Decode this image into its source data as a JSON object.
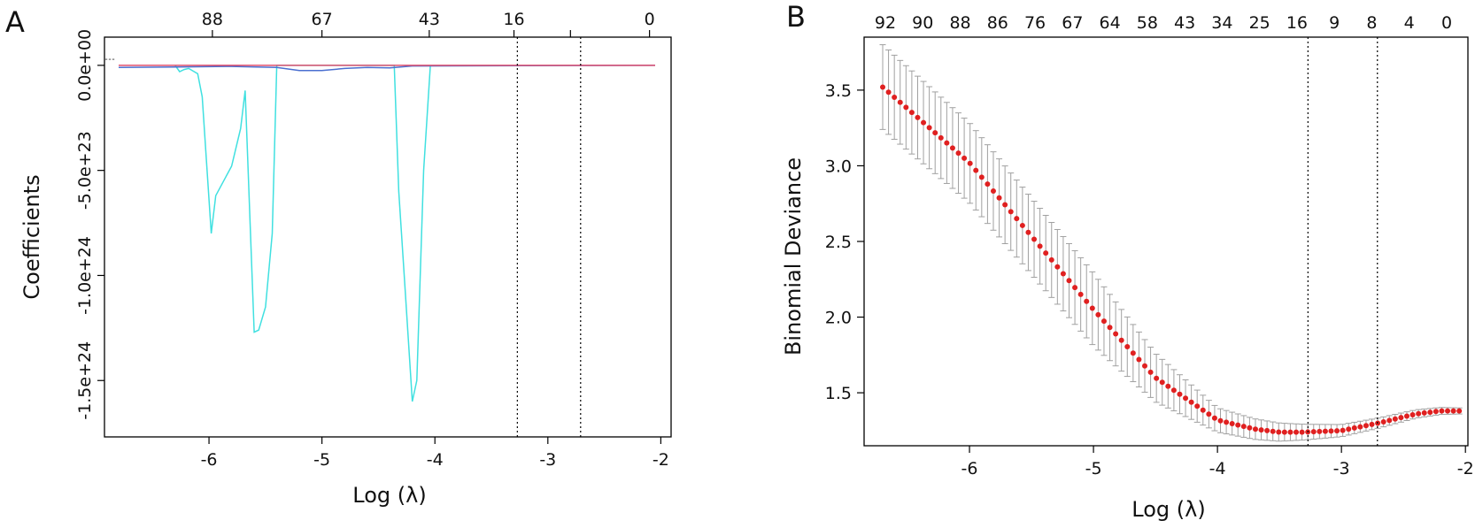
{
  "chart_data": [
    {
      "panel": "A",
      "type": "line",
      "title": "",
      "xlabel": "Log (λ)",
      "ylabel": "Coefficients",
      "xlim": [
        -6.8,
        -2.05
      ],
      "ylim": [
        -1.6e+24,
        5e+22
      ],
      "x_ticks": [
        -6,
        -5,
        -4,
        -3,
        -2
      ],
      "x_tick_labels": [
        "-6",
        "-5",
        "-4",
        "-3",
        "-2"
      ],
      "y_ticks": [
        0,
        -5e+23,
        -1e+24,
        -1.5e+24
      ],
      "y_tick_labels": [
        "0.0e+00",
        "-5.0e+23",
        "-1.0e+24",
        "-1.5e+24"
      ],
      "top_ticks": [
        -5.97,
        -5.0,
        -4.05,
        -3.3,
        -2.8,
        -2.1
      ],
      "top_tick_labels": [
        "88",
        "67",
        "43",
        "16",
        "",
        "0"
      ],
      "top_tick_labels_display": [
        "88",
        "67",
        "43",
        "16",
        "0"
      ],
      "vlines": [
        -3.27,
        -2.71
      ],
      "series": [
        {
          "color": "#40e0e0",
          "x": [
            -6.3,
            -6.26,
            -6.22,
            -6.18,
            -6.1,
            -6.06,
            -5.98,
            -5.94,
            -5.86,
            -5.8,
            -5.72,
            -5.68,
            -5.6,
            -5.56,
            -5.5,
            -5.44,
            -5.4,
            -5.34,
            -4.36,
            -4.32,
            -4.26,
            -4.2,
            -4.16,
            -4.1,
            -4.04
          ],
          "y": [
            0,
            -3e+22,
            -2e+22,
            -1.5e+22,
            -4e+22,
            -1.5e+23,
            -8e+23,
            -6.2e+23,
            -5.4e+23,
            -4.8e+23,
            -3e+23,
            -1.2e+23,
            -1.27e+24,
            -1.26e+24,
            -1.15e+24,
            -8e+23,
            0,
            0,
            0,
            -6e+23,
            -1.1e+24,
            -1.6e+24,
            -1.5e+24,
            -5e+23,
            0
          ]
        },
        {
          "color": "#4a6fd0",
          "x": [
            -6.8,
            -6.3,
            -5.8,
            -5.4,
            -5.2,
            -5.0,
            -4.8,
            -4.6,
            -4.4,
            -4.2,
            -2.05
          ],
          "y": [
            -1e+22,
            -8e+21,
            -5e+21,
            -1e+22,
            -2.5e+22,
            -2.5e+22,
            -1.5e+22,
            -1e+22,
            -1.2e+22,
            -3e+21,
            0
          ]
        },
        {
          "color": "#e0506e",
          "x": [
            -6.8,
            -2.05
          ],
          "y": [
            0,
            0
          ]
        }
      ]
    },
    {
      "panel": "B",
      "type": "scatter",
      "title": "",
      "xlabel": "Log (λ)",
      "ylabel": "Binomial Deviance",
      "xlim": [
        -6.85,
        -1.98
      ],
      "ylim": [
        1.15,
        3.85
      ],
      "x_ticks": [
        -6,
        -5,
        -4,
        -3,
        -2
      ],
      "x_tick_labels": [
        "-6",
        "-5",
        "-4",
        "-3",
        "-2"
      ],
      "y_ticks": [
        1.5,
        2.0,
        2.5,
        3.0,
        3.5
      ],
      "y_tick_labels": [
        "1.5",
        "2.0",
        "2.5",
        "3.0",
        "3.5"
      ],
      "top_tick_labels": [
        "92",
        "90",
        "88",
        "86",
        "76",
        "67",
        "64",
        "58",
        "43",
        "34",
        "25",
        "16",
        "9",
        "8",
        "4",
        "0"
      ],
      "vlines": [
        -3.27,
        -2.71
      ],
      "point_color": "#e02020",
      "errorbar_color": "#a0a0a0",
      "x_start": -6.7,
      "x_end": -2.05,
      "n_points": 100,
      "cv_curve_knots": {
        "x": [
          -6.7,
          -6.0,
          -5.0,
          -4.5,
          -4.0,
          -3.7,
          -3.5,
          -3.3,
          -3.0,
          -2.7,
          -2.4,
          -2.2,
          -2.05
        ],
        "y": [
          3.52,
          3.02,
          2.05,
          1.6,
          1.32,
          1.26,
          1.24,
          1.24,
          1.25,
          1.3,
          1.36,
          1.38,
          1.38
        ]
      },
      "cv_se_knots": {
        "x": [
          -6.7,
          -5.0,
          -4.0,
          -3.0,
          -2.05
        ],
        "y": [
          0.28,
          0.24,
          0.08,
          0.04,
          0.02
        ]
      }
    }
  ],
  "panel_labels": [
    "A",
    "B"
  ]
}
